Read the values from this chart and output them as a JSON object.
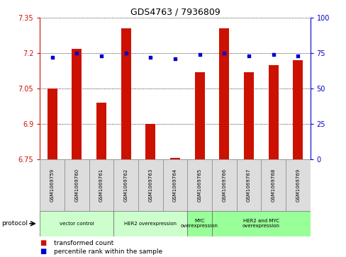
{
  "title": "GDS4763 / 7936809",
  "samples": [
    "GSM1069759",
    "GSM1069760",
    "GSM1069761",
    "GSM1069762",
    "GSM1069763",
    "GSM1069764",
    "GSM1069765",
    "GSM1069766",
    "GSM1069767",
    "GSM1069768",
    "GSM1069769"
  ],
  "bar_values": [
    7.05,
    7.22,
    6.99,
    7.305,
    6.9,
    6.757,
    7.12,
    7.305,
    7.12,
    7.15,
    7.17
  ],
  "percentile_values": [
    72,
    75,
    73,
    75,
    72,
    71,
    74,
    75,
    73,
    74,
    73
  ],
  "ylim_left": [
    6.75,
    7.35
  ],
  "ylim_right": [
    0,
    100
  ],
  "yticks_left": [
    7.35,
    7.2,
    7.05,
    6.9,
    6.75
  ],
  "yticks_right": [
    100,
    75,
    50,
    25,
    0
  ],
  "bar_color": "#cc1100",
  "dot_color": "#0000cc",
  "grid_color": "#000000",
  "axis_color_left": "#cc1100",
  "axis_color_right": "#0000cc",
  "groups": [
    {
      "label": "vector control",
      "start": 0,
      "end": 2,
      "color": "#ccffcc"
    },
    {
      "label": "HER2 overexpression",
      "start": 3,
      "end": 5,
      "color": "#ccffcc"
    },
    {
      "label": "MYC\noverexpression",
      "start": 6,
      "end": 6,
      "color": "#99ff99"
    },
    {
      "label": "HER2 and MYC\noverexpression",
      "start": 7,
      "end": 10,
      "color": "#99ff99"
    }
  ],
  "legend_items": [
    {
      "label": "transformed count",
      "color": "#cc1100"
    },
    {
      "label": "percentile rank within the sample",
      "color": "#0000cc"
    }
  ],
  "protocol_label": "protocol"
}
